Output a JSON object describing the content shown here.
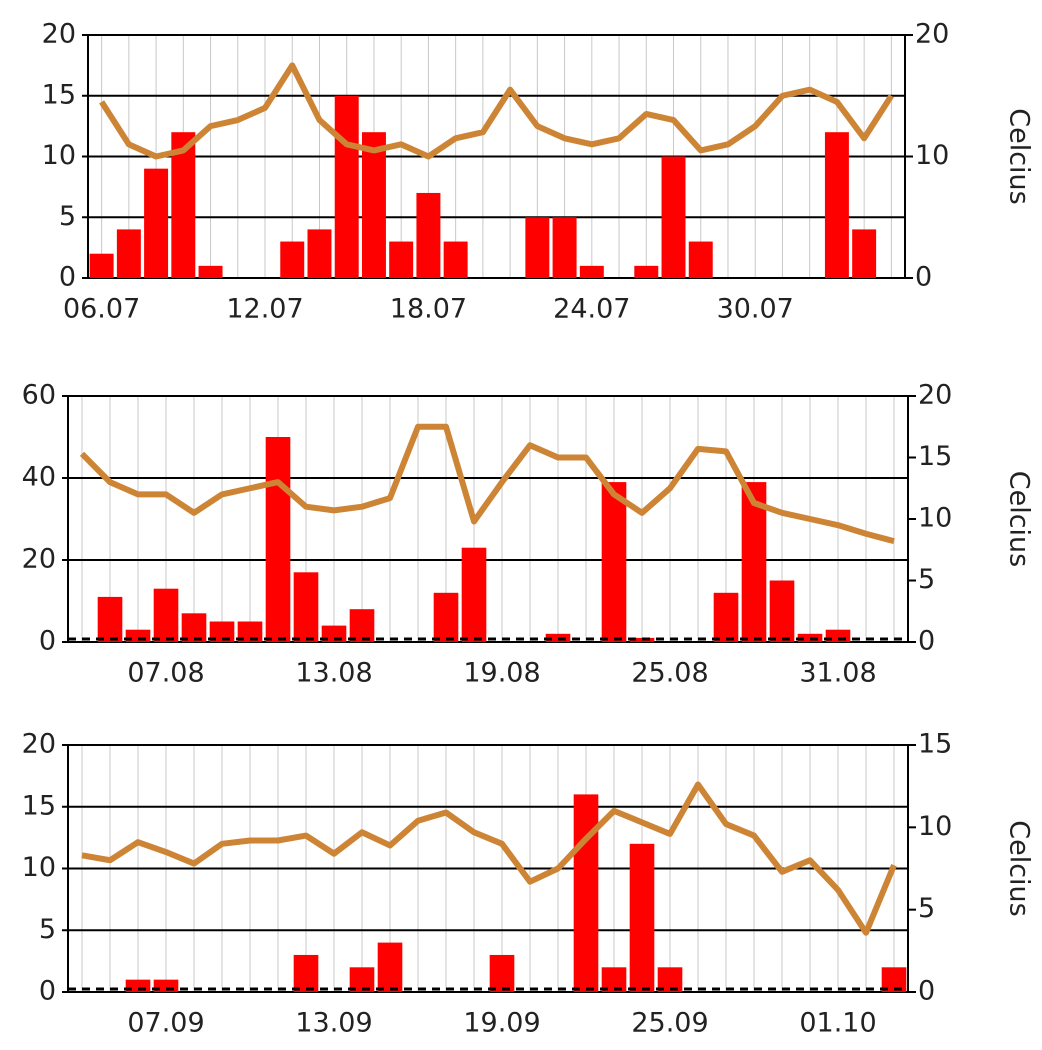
{
  "chart_data": [
    {
      "type": "combo",
      "y2label": "Celcius",
      "categories": [
        "06.07",
        null,
        null,
        null,
        null,
        null,
        "12.07",
        null,
        null,
        null,
        null,
        null,
        "18.07",
        null,
        null,
        null,
        null,
        null,
        "24.07",
        null,
        null,
        null,
        null,
        null,
        "30.07",
        null,
        null,
        null,
        null,
        null
      ],
      "series": [
        {
          "type": "bar",
          "color": "#ff0000",
          "values": [
            2,
            4,
            9,
            12,
            1,
            0,
            0,
            3,
            4,
            15,
            12,
            3,
            7,
            3,
            0,
            0,
            5,
            5,
            1,
            0,
            1,
            10,
            3,
            0,
            0,
            0,
            0,
            12,
            4,
            0
          ]
        },
        {
          "type": "line",
          "axis": "y2",
          "color": "#cd8535",
          "values": [
            14.5,
            11,
            10,
            10.5,
            12.5,
            13,
            14,
            17.5,
            13,
            11,
            10.5,
            11,
            10,
            11.5,
            12,
            15.5,
            12.5,
            11.5,
            11,
            11.5,
            13.5,
            13,
            10.5,
            11,
            12.5,
            15,
            15.5,
            14.5,
            11.5,
            15
          ]
        }
      ],
      "ylim": [
        0,
        20
      ],
      "yticks": [
        0,
        5,
        10,
        15,
        20
      ],
      "y2lim": [
        0,
        20
      ],
      "y2ticks": [
        0,
        10,
        20
      ],
      "grid": true
    },
    {
      "type": "combo",
      "y2label": "Celcius",
      "baseline": "dashed",
      "categories": [
        null,
        null,
        null,
        "07.08",
        null,
        null,
        null,
        null,
        null,
        "13.08",
        null,
        null,
        null,
        null,
        null,
        "19.08",
        null,
        null,
        null,
        null,
        null,
        "25.08",
        null,
        null,
        null,
        null,
        null,
        "31.08",
        null,
        null
      ],
      "series": [
        {
          "type": "bar",
          "color": "#ff0000",
          "values": [
            0,
            11,
            3,
            13,
            7,
            5,
            5,
            50,
            17,
            4,
            8,
            0,
            0,
            12,
            23,
            0,
            0,
            2,
            0,
            39,
            1,
            0,
            0,
            12,
            39,
            15,
            2,
            3,
            0,
            0
          ]
        },
        {
          "type": "line",
          "axis": "y2",
          "color": "#cd8535",
          "values": [
            15.3,
            13,
            12,
            12,
            10.5,
            12,
            12.5,
            13,
            11,
            10.7,
            11,
            11.7,
            17.5,
            17.5,
            9.8,
            13,
            16,
            15,
            15,
            12,
            10.5,
            12.5,
            15.7,
            15.5,
            11.3,
            10.5,
            10,
            9.5,
            8.8,
            8.2
          ]
        }
      ],
      "ylim": [
        0,
        60
      ],
      "yticks": [
        0,
        20,
        40,
        60
      ],
      "y2lim": [
        0,
        20
      ],
      "y2ticks": [
        0,
        5,
        10,
        15,
        20
      ],
      "grid": true
    },
    {
      "type": "combo",
      "y2label": "Celcius",
      "baseline": "dashed",
      "categories": [
        null,
        null,
        null,
        "07.09",
        null,
        null,
        null,
        null,
        null,
        "13.09",
        null,
        null,
        null,
        null,
        null,
        "19.09",
        null,
        null,
        null,
        null,
        null,
        "25.09",
        null,
        null,
        null,
        null,
        null,
        "01.10",
        null,
        null
      ],
      "series": [
        {
          "type": "bar",
          "color": "#ff0000",
          "values": [
            0,
            0,
            1,
            1,
            0,
            0,
            0,
            0,
            3,
            0,
            2,
            4,
            0,
            0,
            0,
            3,
            0,
            0,
            16,
            2,
            12,
            2,
            0,
            0,
            0,
            0,
            0,
            0,
            0,
            2
          ]
        },
        {
          "type": "line",
          "axis": "y2",
          "color": "#cd8535",
          "values": [
            8.3,
            8,
            9.1,
            8.5,
            7.8,
            9,
            9.2,
            9.2,
            9.5,
            8.4,
            9.7,
            8.9,
            10.4,
            10.9,
            9.7,
            9,
            6.7,
            7.5,
            9.3,
            11,
            10.3,
            9.6,
            12.6,
            10.2,
            9.5,
            7.3,
            8,
            6.2,
            3.6,
            7.7
          ]
        }
      ],
      "ylim": [
        0,
        20
      ],
      "yticks": [
        0,
        5,
        10,
        15,
        20
      ],
      "y2lim": [
        0,
        15
      ],
      "y2ticks": [
        0,
        5,
        10,
        15
      ],
      "grid": true
    }
  ]
}
